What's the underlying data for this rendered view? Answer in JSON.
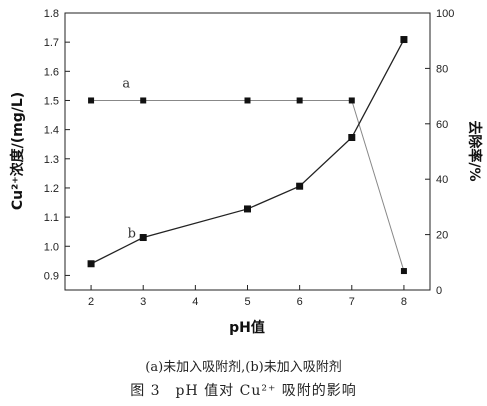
{
  "chart_data": {
    "type": "line",
    "xlabel": "pH值",
    "ylabel": "Cu²⁺浓度/(mg/L)",
    "y2label": "去除率/%",
    "x_ticks": [
      2,
      3,
      4,
      5,
      6,
      7,
      8
    ],
    "xlim": [
      1.5,
      8.5
    ],
    "ylim": [
      0.85,
      1.8
    ],
    "y_ticks": [
      "0.9",
      "1.0",
      "1.1",
      "1.2",
      "1.3",
      "1.4",
      "1.5",
      "1.6",
      "1.7",
      "1.8"
    ],
    "y2lim": [
      0,
      100
    ],
    "y2_ticks": [
      "0",
      "20",
      "40",
      "60",
      "80",
      "100"
    ],
    "grid": false,
    "legend": "none",
    "series": [
      {
        "name": "a",
        "axis": "left",
        "color": "#888888",
        "x": [
          2,
          3,
          5,
          6,
          7,
          8
        ],
        "y": [
          1.5,
          1.5,
          1.5,
          1.5,
          1.5,
          0.915
        ]
      },
      {
        "name": "b",
        "axis": "left",
        "color": "#222222",
        "x": [
          2,
          3,
          5,
          6,
          7,
          8
        ],
        "y": [
          0.94,
          1.03,
          1.128,
          1.206,
          1.373,
          1.709
        ]
      }
    ]
  },
  "caption": {
    "line1": "(a)未加入吸附剂,(b)未加入吸附剂",
    "line2": "图 3　pH 值对 Cu²⁺ 吸附的影响"
  }
}
